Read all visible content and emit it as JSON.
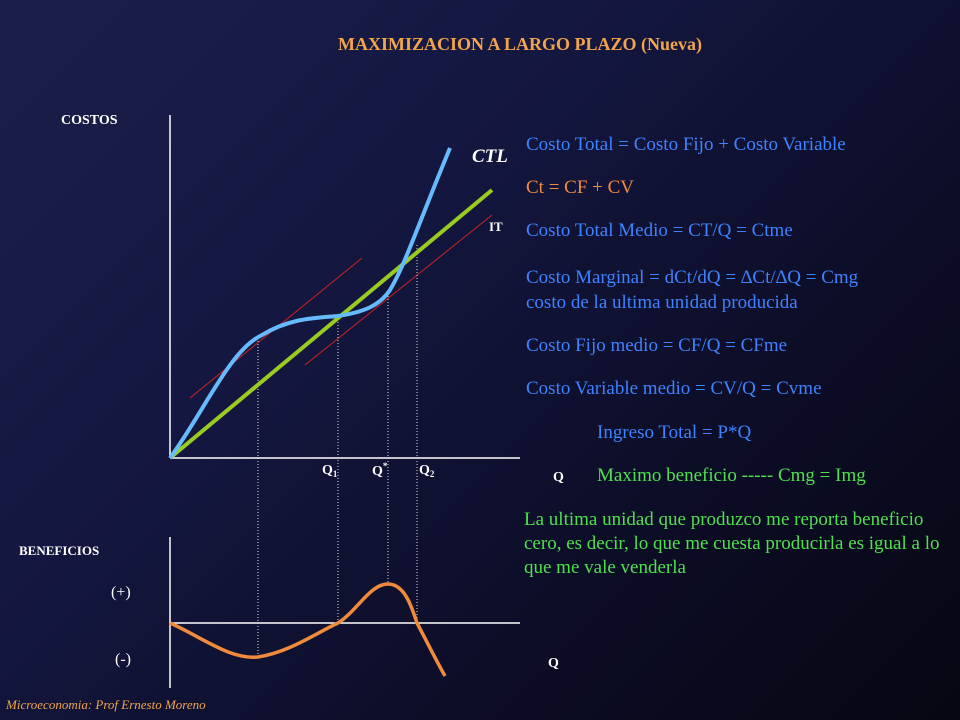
{
  "title": "MAXIMIZACION A LARGO PLAZO (Nueva)",
  "labels": {
    "costos": "COSTOS",
    "ctl": "CTL",
    "it": "IT",
    "q_axis_top": "Q",
    "q1": "Q",
    "q1_sub": "1",
    "qstar": "Q",
    "qstar_sup": "*",
    "q2": "Q",
    "q2_sub": "2",
    "beneficios": "BENEFICIOS",
    "plus": "(+)",
    "minus": "(-)",
    "q_axis_bottom": "Q"
  },
  "definitions": [
    "Costo Total = Costo Fijo + Costo Variable",
    "Ct = CF + CV",
    "Costo Total Medio = CT/Q = Ctme",
    "Costo Marginal = dCt/dQ = ∆Ct/∆Q = Cmg",
    "costo de la ultima unidad producida",
    "Costo Fijo medio = CF/Q = CFme",
    "Costo Variable medio = CV/Q = Cvme"
  ],
  "ingreso_total": "Ingreso Total = P*Q",
  "maximo_beneficio": "Maximo beneficio ----- Cmg = Img",
  "conclusion": "La ultima unidad que produzco me reporta beneficio cero, es decir, lo que me cuesta producirla es igual a lo que me vale venderla",
  "footer": "Microeconomia:  Prof Ernesto Moreno",
  "colors": {
    "ctl_curve": "#66bbff",
    "it_line": "#99cc22",
    "tangent_lines": "#cc2222",
    "profit_curve": "#f08a3c",
    "title": "#f2a44a",
    "blue_text": "#3f82ff",
    "orange_text": "#f08a3c",
    "green_text": "#4fe04f"
  }
}
